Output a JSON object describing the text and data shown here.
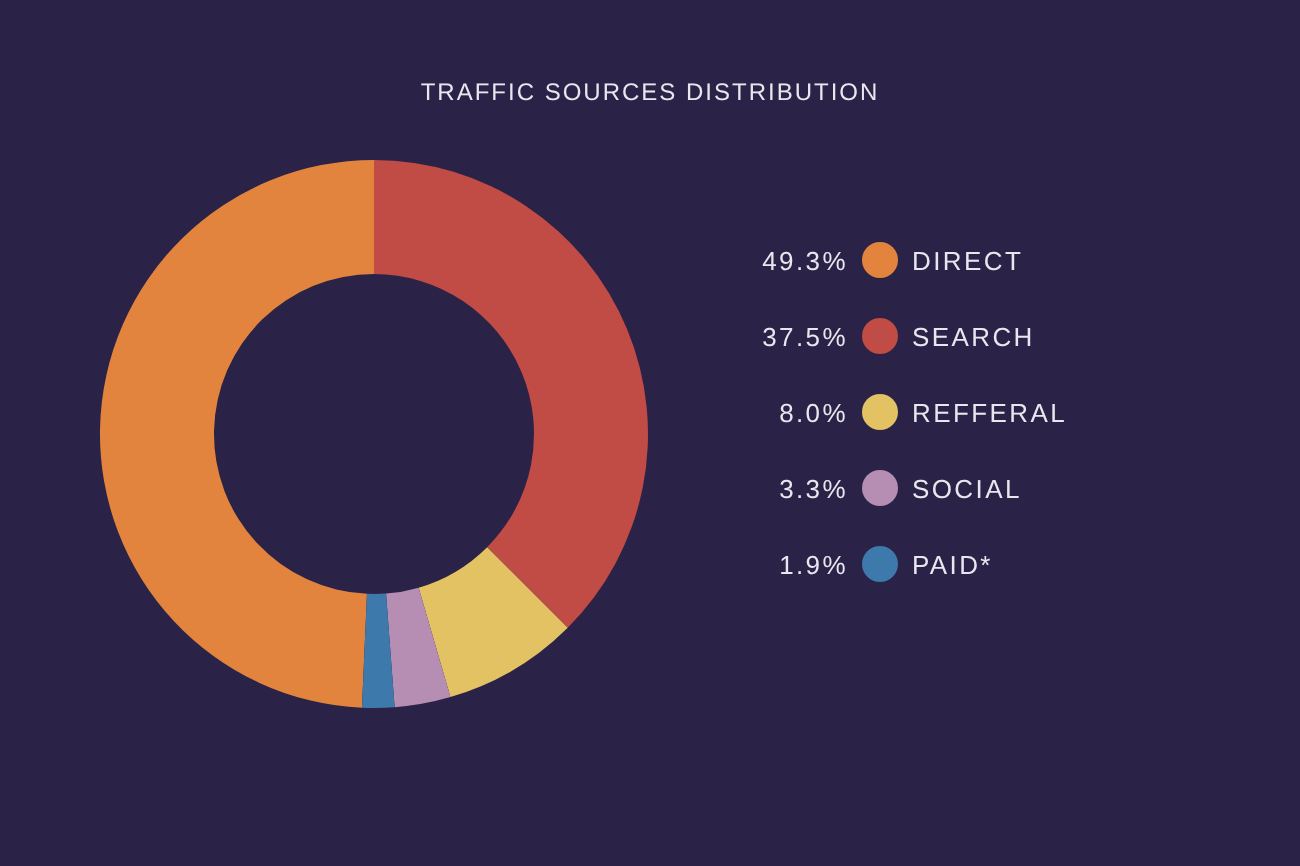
{
  "chart_data": {
    "type": "donut",
    "title": "TRAFFIC SOURCES DISTRIBUTION",
    "categories": [
      "DIRECT",
      "SEARCH",
      "REFFERAL",
      "SOCIAL",
      "PAID*"
    ],
    "values": [
      49.3,
      37.5,
      8.0,
      3.3,
      1.9
    ],
    "colors": [
      "#e2843e",
      "#c14b45",
      "#e2c262",
      "#b68eb3",
      "#3d79ab"
    ],
    "value_labels": [
      "49.3%",
      "37.5%",
      "8.0%",
      "3.3%",
      "1.9%"
    ],
    "legend": "right"
  }
}
